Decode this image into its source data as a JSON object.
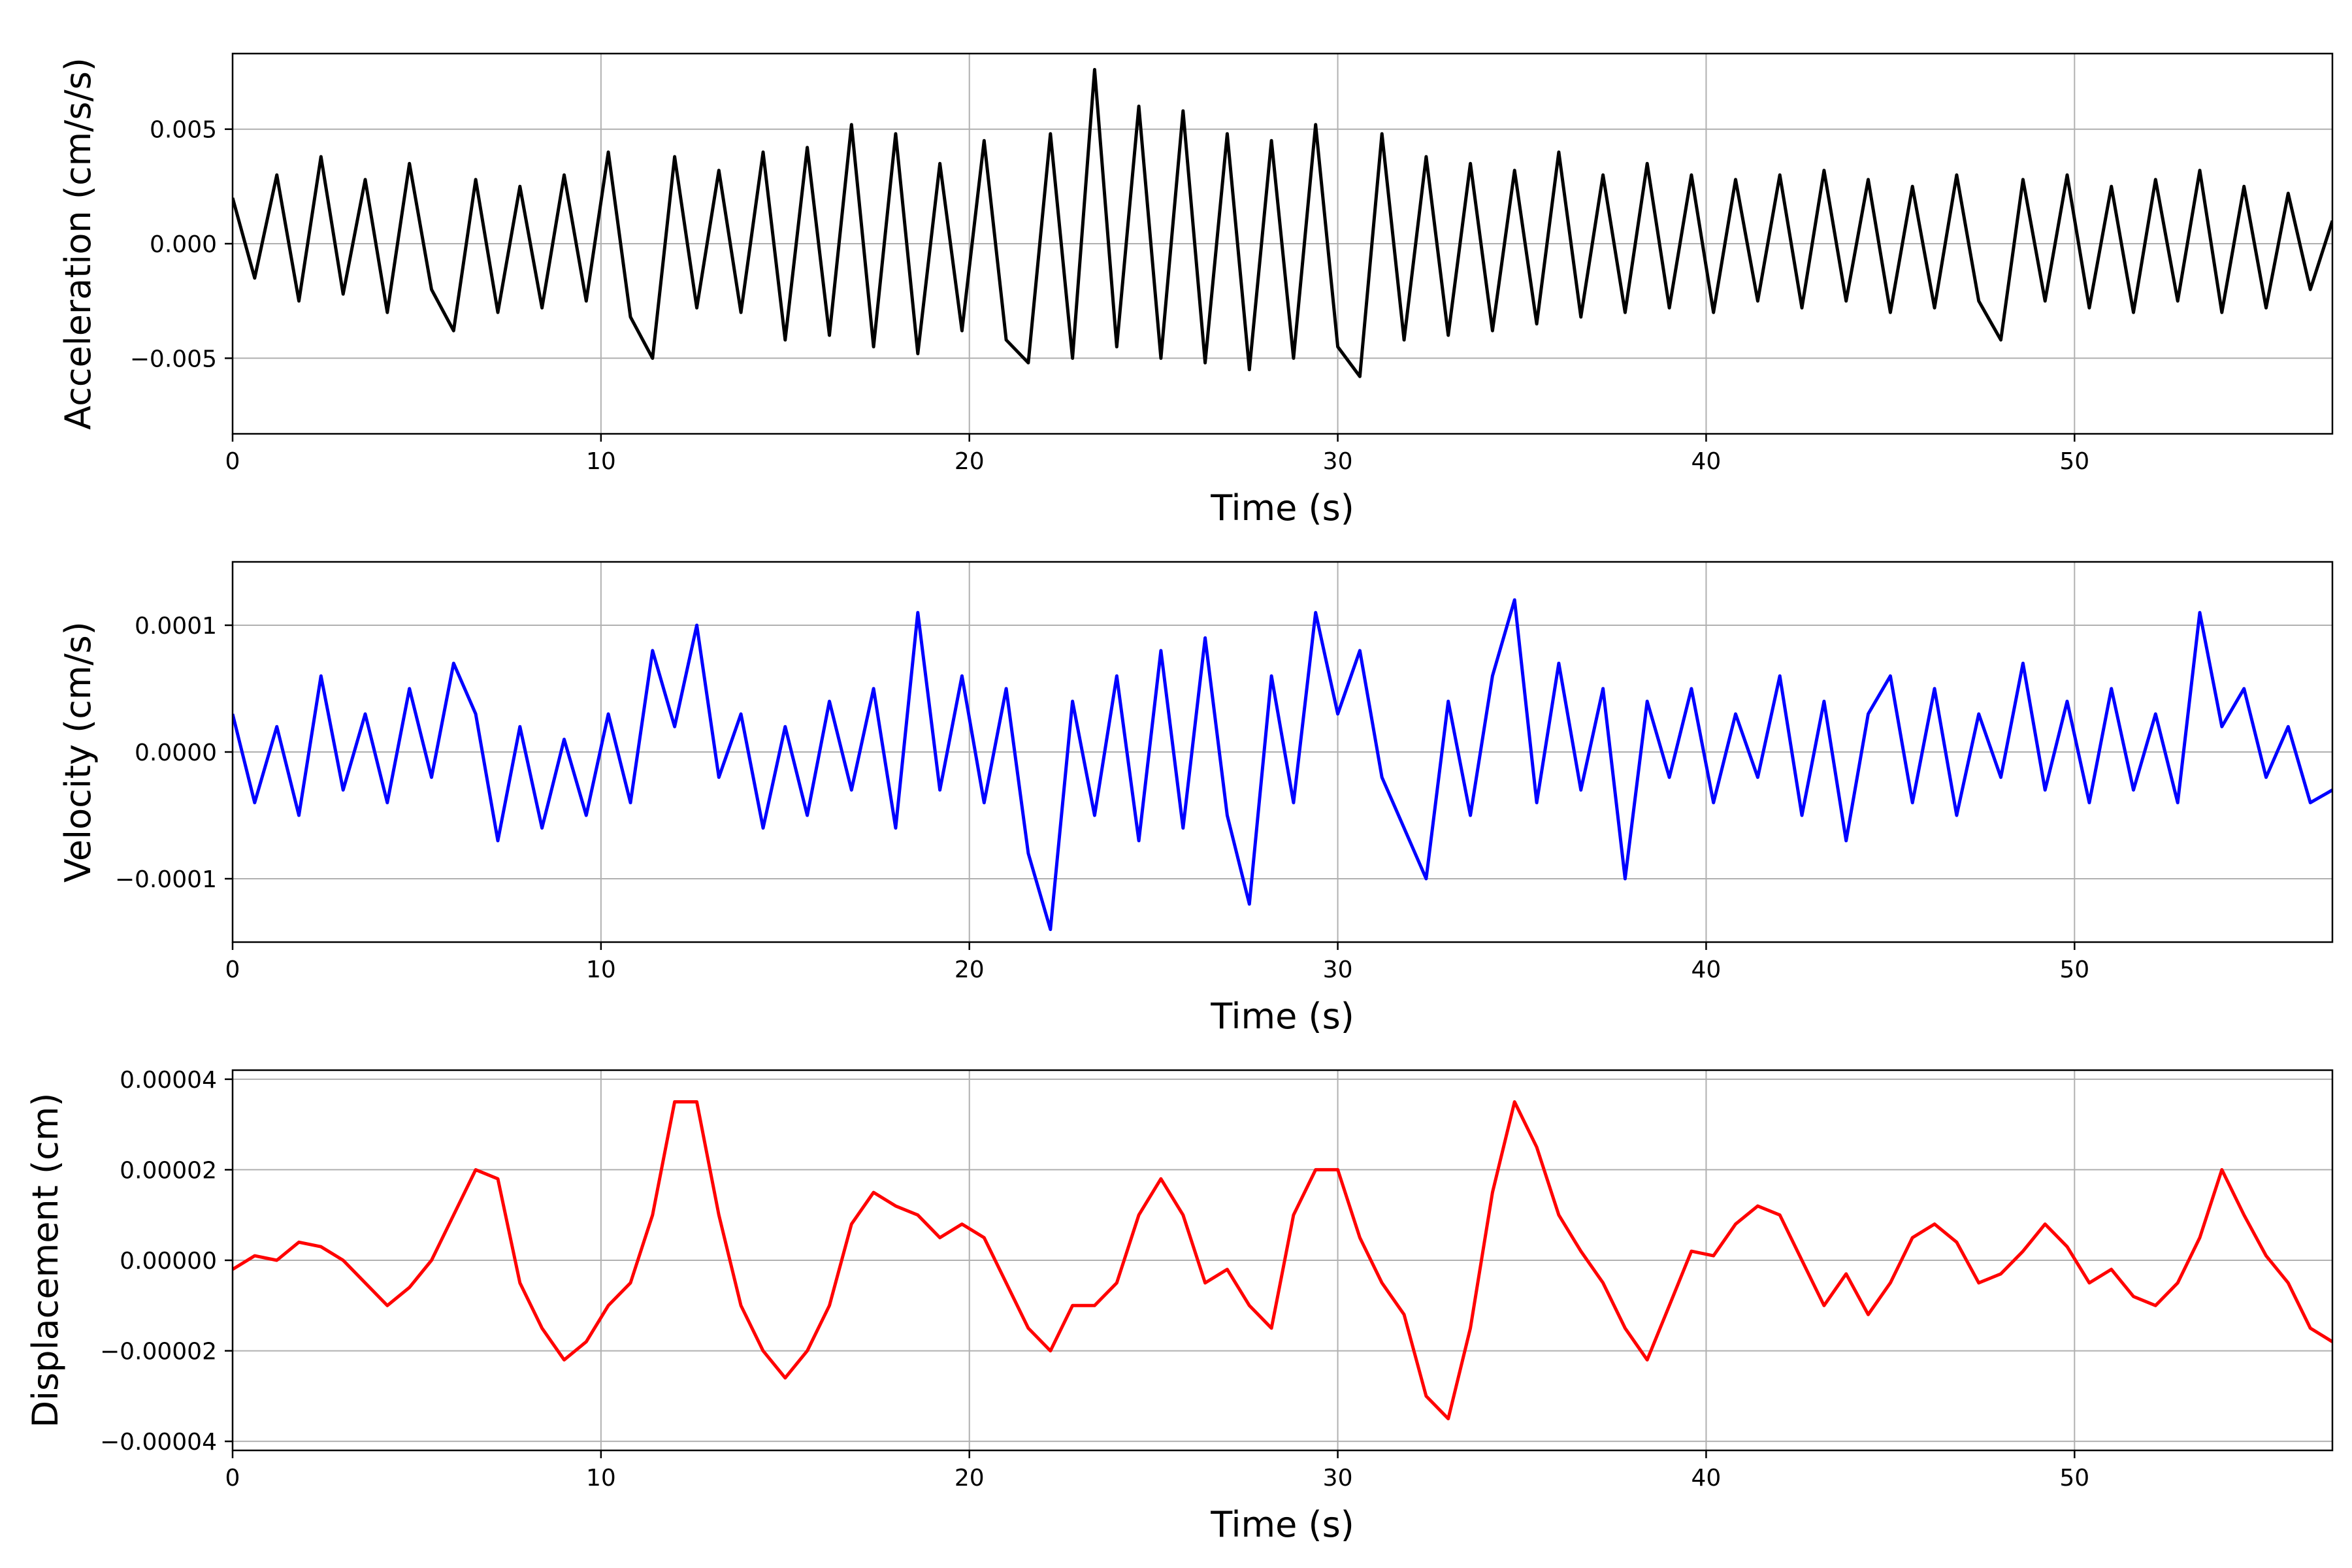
{
  "chart_data": [
    {
      "type": "line",
      "xlabel": "Time (s)",
      "ylabel": "Acceleration (cm/s/s)",
      "xlim": [
        0,
        57
      ],
      "ylim": [
        -0.0083,
        0.0083
      ],
      "xticks": [
        0,
        10,
        20,
        30,
        40,
        50
      ],
      "xtick_labels": [
        "0",
        "10",
        "20",
        "30",
        "40",
        "50"
      ],
      "yticks": [
        -0.005,
        0.0,
        0.005
      ],
      "ytick_labels": [
        "−0.005",
        "0.000",
        "0.005"
      ],
      "grid": true,
      "color": "#000000",
      "series": [
        {
          "x": [
            0.0,
            0.6,
            1.2,
            1.8,
            2.4,
            3.0,
            3.6,
            4.2,
            4.8,
            5.4,
            6.0,
            6.6,
            7.2,
            7.8,
            8.4,
            9.0,
            9.6,
            10.2,
            10.8,
            11.4,
            12.0,
            12.6,
            13.2,
            13.8,
            14.4,
            15.0,
            15.6,
            16.2,
            16.8,
            17.4,
            18.0,
            18.6,
            19.2,
            19.8,
            20.4,
            21.0,
            21.6,
            22.2,
            22.8,
            23.4,
            24.0,
            24.6,
            25.2,
            25.8,
            26.4,
            27.0,
            27.6,
            28.2,
            28.8,
            29.4,
            30.0,
            30.6,
            31.2,
            31.8,
            32.4,
            33.0,
            33.6,
            34.2,
            34.8,
            35.4,
            36.0,
            36.6,
            37.2,
            37.8,
            38.4,
            39.0,
            39.6,
            40.2,
            40.8,
            41.4,
            42.0,
            42.6,
            43.2,
            43.8,
            44.4,
            45.0,
            45.6,
            46.2,
            46.8,
            47.4,
            48.0,
            48.6,
            49.2,
            49.8,
            50.4,
            51.0,
            51.6,
            52.2,
            52.8,
            53.4,
            54.0,
            54.6,
            55.2,
            55.8,
            56.4,
            57.0
          ],
          "y": [
            0.002,
            -0.0015,
            0.003,
            -0.0025,
            0.0038,
            -0.0022,
            0.0028,
            -0.003,
            0.0035,
            -0.002,
            -0.0038,
            0.0028,
            -0.003,
            0.0025,
            -0.0028,
            0.003,
            -0.0025,
            0.004,
            -0.0032,
            -0.005,
            0.0038,
            -0.0028,
            0.0032,
            -0.003,
            0.004,
            -0.0042,
            0.0042,
            -0.004,
            0.0052,
            -0.0045,
            0.0048,
            -0.0048,
            0.0035,
            -0.0038,
            0.0045,
            -0.0042,
            -0.0052,
            0.0048,
            -0.005,
            0.0076,
            -0.0045,
            0.006,
            -0.005,
            0.0058,
            -0.0052,
            0.0048,
            -0.0055,
            0.0045,
            -0.005,
            0.0052,
            -0.0045,
            -0.0058,
            0.0048,
            -0.0042,
            0.0038,
            -0.004,
            0.0035,
            -0.0038,
            0.0032,
            -0.0035,
            0.004,
            -0.0032,
            0.003,
            -0.003,
            0.0035,
            -0.0028,
            0.003,
            -0.003,
            0.0028,
            -0.0025,
            0.003,
            -0.0028,
            0.0032,
            -0.0025,
            0.0028,
            -0.003,
            0.0025,
            -0.0028,
            0.003,
            -0.0025,
            -0.0042,
            0.0028,
            -0.0025,
            0.003,
            -0.0028,
            0.0025,
            -0.003,
            0.0028,
            -0.0025,
            0.0032,
            -0.003,
            0.0025,
            -0.0028,
            0.0022,
            -0.002,
            0.001
          ]
        }
      ]
    },
    {
      "type": "line",
      "xlabel": "Time (s)",
      "ylabel": "Velocity (cm/s)",
      "xlim": [
        0,
        57
      ],
      "ylim": [
        -0.00015,
        0.00015
      ],
      "xticks": [
        0,
        10,
        20,
        30,
        40,
        50
      ],
      "xtick_labels": [
        "0",
        "10",
        "20",
        "30",
        "40",
        "50"
      ],
      "yticks": [
        -0.0001,
        0.0,
        0.0001
      ],
      "ytick_labels": [
        "−0.0001",
        "0.0000",
        "0.0001"
      ],
      "grid": true,
      "color": "#0000ff",
      "series": [
        {
          "x": [
            0.0,
            0.6,
            1.2,
            1.8,
            2.4,
            3.0,
            3.6,
            4.2,
            4.8,
            5.4,
            6.0,
            6.6,
            7.2,
            7.8,
            8.4,
            9.0,
            9.6,
            10.2,
            10.8,
            11.4,
            12.0,
            12.6,
            13.2,
            13.8,
            14.4,
            15.0,
            15.6,
            16.2,
            16.8,
            17.4,
            18.0,
            18.6,
            19.2,
            19.8,
            20.4,
            21.0,
            21.6,
            22.2,
            22.8,
            23.4,
            24.0,
            24.6,
            25.2,
            25.8,
            26.4,
            27.0,
            27.6,
            28.2,
            28.8,
            29.4,
            30.0,
            30.6,
            31.2,
            31.8,
            32.4,
            33.0,
            33.6,
            34.2,
            34.8,
            35.4,
            36.0,
            36.6,
            37.2,
            37.8,
            38.4,
            39.0,
            39.6,
            40.2,
            40.8,
            41.4,
            42.0,
            42.6,
            43.2,
            43.8,
            44.4,
            45.0,
            45.6,
            46.2,
            46.8,
            47.4,
            48.0,
            48.6,
            49.2,
            49.8,
            50.4,
            51.0,
            51.6,
            52.2,
            52.8,
            53.4,
            54.0,
            54.6,
            55.2,
            55.8,
            56.4,
            57.0
          ],
          "y": [
            3e-05,
            -4e-05,
            2e-05,
            -5e-05,
            6e-05,
            -3e-05,
            3e-05,
            -4e-05,
            5e-05,
            -2e-05,
            7e-05,
            3e-05,
            -7e-05,
            2e-05,
            -6e-05,
            1e-05,
            -5e-05,
            3e-05,
            -4e-05,
            8e-05,
            2e-05,
            0.0001,
            -2e-05,
            3e-05,
            -6e-05,
            2e-05,
            -5e-05,
            4e-05,
            -3e-05,
            5e-05,
            -6e-05,
            0.00011,
            -3e-05,
            6e-05,
            -4e-05,
            5e-05,
            -8e-05,
            -0.00014,
            4e-05,
            -5e-05,
            6e-05,
            -7e-05,
            8e-05,
            -6e-05,
            9e-05,
            -5e-05,
            -0.00012,
            6e-05,
            -4e-05,
            0.00011,
            3e-05,
            8e-05,
            -2e-05,
            -6e-05,
            -0.0001,
            4e-05,
            -5e-05,
            6e-05,
            0.00012,
            -4e-05,
            7e-05,
            -3e-05,
            5e-05,
            -0.0001,
            4e-05,
            -2e-05,
            5e-05,
            -4e-05,
            3e-05,
            -2e-05,
            6e-05,
            -5e-05,
            4e-05,
            -7e-05,
            3e-05,
            6e-05,
            -4e-05,
            5e-05,
            -5e-05,
            3e-05,
            -2e-05,
            7e-05,
            -3e-05,
            4e-05,
            -4e-05,
            5e-05,
            -3e-05,
            3e-05,
            -4e-05,
            0.00011,
            2e-05,
            5e-05,
            -2e-05,
            2e-05,
            -4e-05,
            -3e-05
          ]
        }
      ]
    },
    {
      "type": "line",
      "xlabel": "Time (s)",
      "ylabel": "Displacement (cm)",
      "xlim": [
        0,
        57
      ],
      "ylim": [
        -4.2e-05,
        4.2e-05
      ],
      "xticks": [
        0,
        10,
        20,
        30,
        40,
        50
      ],
      "xtick_labels": [
        "0",
        "10",
        "20",
        "30",
        "40",
        "50"
      ],
      "yticks": [
        -4e-05,
        -2e-05,
        0.0,
        2e-05,
        4e-05
      ],
      "ytick_labels": [
        "−0.00004",
        "−0.00002",
        "0.00000",
        "0.00002",
        "0.00004"
      ],
      "grid": true,
      "color": "#ff0000",
      "series": [
        {
          "x": [
            0.0,
            0.6,
            1.2,
            1.8,
            2.4,
            3.0,
            3.6,
            4.2,
            4.8,
            5.4,
            6.0,
            6.6,
            7.2,
            7.8,
            8.4,
            9.0,
            9.6,
            10.2,
            10.8,
            11.4,
            12.0,
            12.6,
            13.2,
            13.8,
            14.4,
            15.0,
            15.6,
            16.2,
            16.8,
            17.4,
            18.0,
            18.6,
            19.2,
            19.8,
            20.4,
            21.0,
            21.6,
            22.2,
            22.8,
            23.4,
            24.0,
            24.6,
            25.2,
            25.8,
            26.4,
            27.0,
            27.6,
            28.2,
            28.8,
            29.4,
            30.0,
            30.6,
            31.2,
            31.8,
            32.4,
            33.0,
            33.6,
            34.2,
            34.8,
            35.4,
            36.0,
            36.6,
            37.2,
            37.8,
            38.4,
            39.0,
            39.6,
            40.2,
            40.8,
            41.4,
            42.0,
            42.6,
            43.2,
            43.8,
            44.4,
            45.0,
            45.6,
            46.2,
            46.8,
            47.4,
            48.0,
            48.6,
            49.2,
            49.8,
            50.4,
            51.0,
            51.6,
            52.2,
            52.8,
            53.4,
            54.0,
            54.6,
            55.2,
            55.8,
            56.4,
            57.0
          ],
          "y": [
            -2e-06,
            1e-06,
            0.0,
            4e-06,
            3e-06,
            0.0,
            -5e-06,
            -1e-05,
            -6e-06,
            0.0,
            1e-05,
            2e-05,
            1.8e-05,
            -5e-06,
            -1.5e-05,
            -2.2e-05,
            -1.8e-05,
            -1e-05,
            -5e-06,
            1e-05,
            3.5e-05,
            3.5e-05,
            1e-05,
            -1e-05,
            -2e-05,
            -2.6e-05,
            -2e-05,
            -1e-05,
            8e-06,
            1.5e-05,
            1.2e-05,
            1e-05,
            5e-06,
            8e-06,
            5e-06,
            -5e-06,
            -1.5e-05,
            -2e-05,
            -1e-05,
            -1e-05,
            -5e-06,
            1e-05,
            1.8e-05,
            1e-05,
            -5e-06,
            -2e-06,
            -1e-05,
            -1.5e-05,
            1e-05,
            2e-05,
            2e-05,
            5e-06,
            -5e-06,
            -1.2e-05,
            -3e-05,
            -3.5e-05,
            -1.5e-05,
            1.5e-05,
            3.5e-05,
            2.5e-05,
            1e-05,
            2e-06,
            -5e-06,
            -1.5e-05,
            -2.2e-05,
            -1e-05,
            2e-06,
            1e-06,
            8e-06,
            1.2e-05,
            1e-05,
            0.0,
            -1e-05,
            -3e-06,
            -1.2e-05,
            -5e-06,
            5e-06,
            8e-06,
            4e-06,
            -5e-06,
            -3e-06,
            2e-06,
            8e-06,
            3e-06,
            -5e-06,
            -2e-06,
            -8e-06,
            -1e-05,
            -5e-06,
            5e-06,
            2e-05,
            1e-05,
            1e-06,
            -5e-06,
            -1.5e-05,
            -1.8e-05
          ]
        }
      ]
    }
  ]
}
